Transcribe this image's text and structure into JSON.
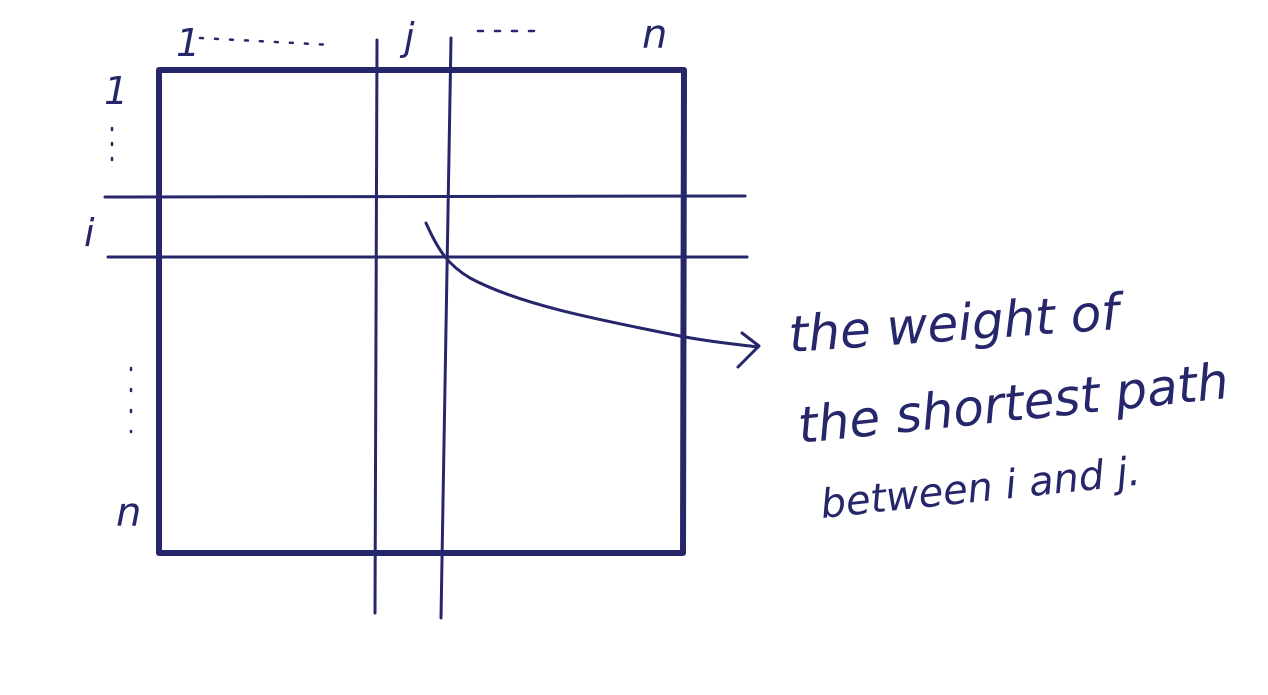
{
  "labels": {
    "col_first": "1",
    "col_sel": "j",
    "col_last": "n",
    "row_first": "1",
    "row_sel": "i",
    "row_last": "n"
  },
  "annotation": {
    "lines": [
      "the weight of",
      "the shortest path",
      "between   i and j."
    ]
  },
  "colors": {
    "ink": "#26266b",
    "background": "#ffffff"
  }
}
